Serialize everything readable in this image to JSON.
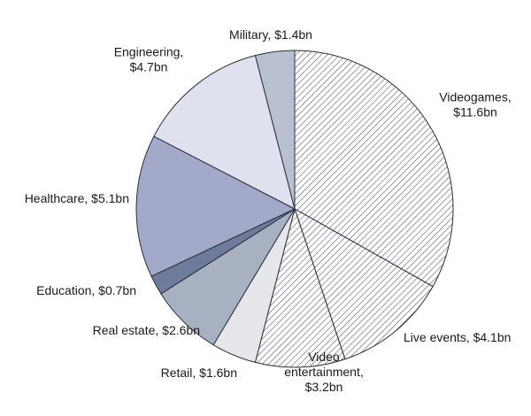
{
  "chart_data": {
    "type": "pie",
    "title": "",
    "unit": "$bn",
    "start_angle_deg": 0,
    "direction": "clockwise",
    "slices": [
      {
        "name": "Videogames",
        "value": 11.6,
        "label": [
          "Videogames,",
          "$11.6bn"
        ],
        "color": "#ffffff",
        "pattern": "hatch"
      },
      {
        "name": "Live events",
        "value": 4.1,
        "label": [
          "Live events, $4.1bn"
        ],
        "color": "#ffffff",
        "pattern": "hatch"
      },
      {
        "name": "Video entertainment",
        "value": 3.2,
        "label": [
          "Video",
          "entertainment,",
          "$3.2bn"
        ],
        "color": "#ffffff",
        "pattern": "hatch"
      },
      {
        "name": "Retail",
        "value": 1.6,
        "label": [
          "Retail, $1.6bn"
        ],
        "color": "#e6e7ea",
        "pattern": "solid"
      },
      {
        "name": "Real estate",
        "value": 2.6,
        "label": [
          "Real estate, $2.6bn"
        ],
        "color": "#a8b1c2",
        "pattern": "solid"
      },
      {
        "name": "Education",
        "value": 0.7,
        "label": [
          "Education, $0.7bn"
        ],
        "color": "#6f7b9a",
        "pattern": "solid"
      },
      {
        "name": "Healthcare",
        "value": 5.1,
        "label": [
          "Healthcare, $5.1bn"
        ],
        "color": "#a3a9c8",
        "pattern": "solid"
      },
      {
        "name": "Engineering",
        "value": 4.7,
        "label": [
          "Engineering,",
          "$4.7bn"
        ],
        "color": "#dfe1ef",
        "pattern": "solid"
      },
      {
        "name": "Military",
        "value": 1.4,
        "label": [
          "Military, $1.4bn"
        ],
        "color": "#b9c0d0",
        "pattern": "solid"
      }
    ]
  }
}
